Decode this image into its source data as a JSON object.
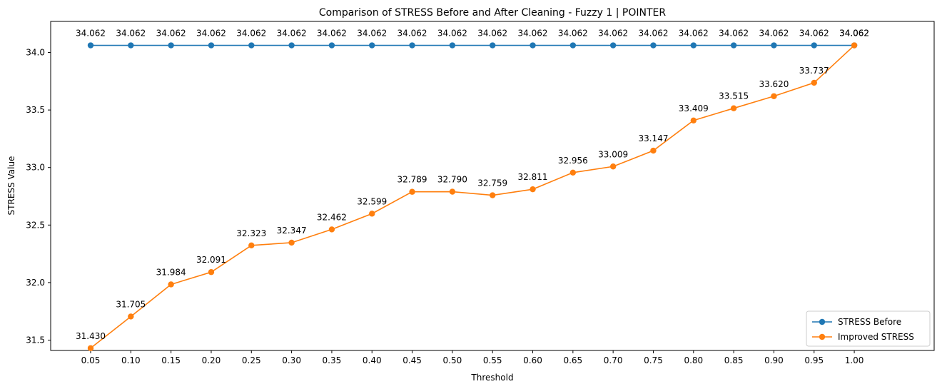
{
  "chart_data": {
    "type": "line",
    "title": "Comparison of STRESS Before and After Cleaning - Fuzzy 1 | POINTER",
    "xlabel": "Threshold",
    "ylabel": "STRESS Value",
    "x": [
      "0.05",
      "0.10",
      "0.15",
      "0.20",
      "0.25",
      "0.30",
      "0.35",
      "0.40",
      "0.45",
      "0.50",
      "0.55",
      "0.60",
      "0.65",
      "0.70",
      "0.75",
      "0.80",
      "0.85",
      "0.90",
      "0.95",
      "1.00"
    ],
    "ylim": [
      31.41,
      34.27
    ],
    "yticks": [
      "31.5",
      "32.0",
      "32.5",
      "33.0",
      "33.5",
      "34.0"
    ],
    "grid": false,
    "legend_position": "bottom-right",
    "series": [
      {
        "name": "STRESS Before",
        "color": "#1f77b4",
        "values": [
          34.062,
          34.062,
          34.062,
          34.062,
          34.062,
          34.062,
          34.062,
          34.062,
          34.062,
          34.062,
          34.062,
          34.062,
          34.062,
          34.062,
          34.062,
          34.062,
          34.062,
          34.062,
          34.062,
          34.062
        ],
        "labels": [
          "34.062",
          "34.062",
          "34.062",
          "34.062",
          "34.062",
          "34.062",
          "34.062",
          "34.062",
          "34.062",
          "34.062",
          "34.062",
          "34.062",
          "34.062",
          "34.062",
          "34.062",
          "34.062",
          "34.062",
          "34.062",
          "34.062",
          "34.062"
        ]
      },
      {
        "name": "Improved STRESS",
        "color": "#ff7f0e",
        "values": [
          31.43,
          31.705,
          31.984,
          32.091,
          32.323,
          32.347,
          32.462,
          32.599,
          32.789,
          32.79,
          32.759,
          32.811,
          32.956,
          33.009,
          33.147,
          33.409,
          33.515,
          33.62,
          33.737,
          34.062
        ],
        "labels": [
          "31.430",
          "31.705",
          "31.984",
          "32.091",
          "32.323",
          "32.347",
          "32.462",
          "32.599",
          "32.789",
          "32.790",
          "32.759",
          "32.811",
          "32.956",
          "33.009",
          "33.147",
          "33.409",
          "33.515",
          "33.620",
          "33.737",
          "34.062"
        ]
      }
    ]
  }
}
